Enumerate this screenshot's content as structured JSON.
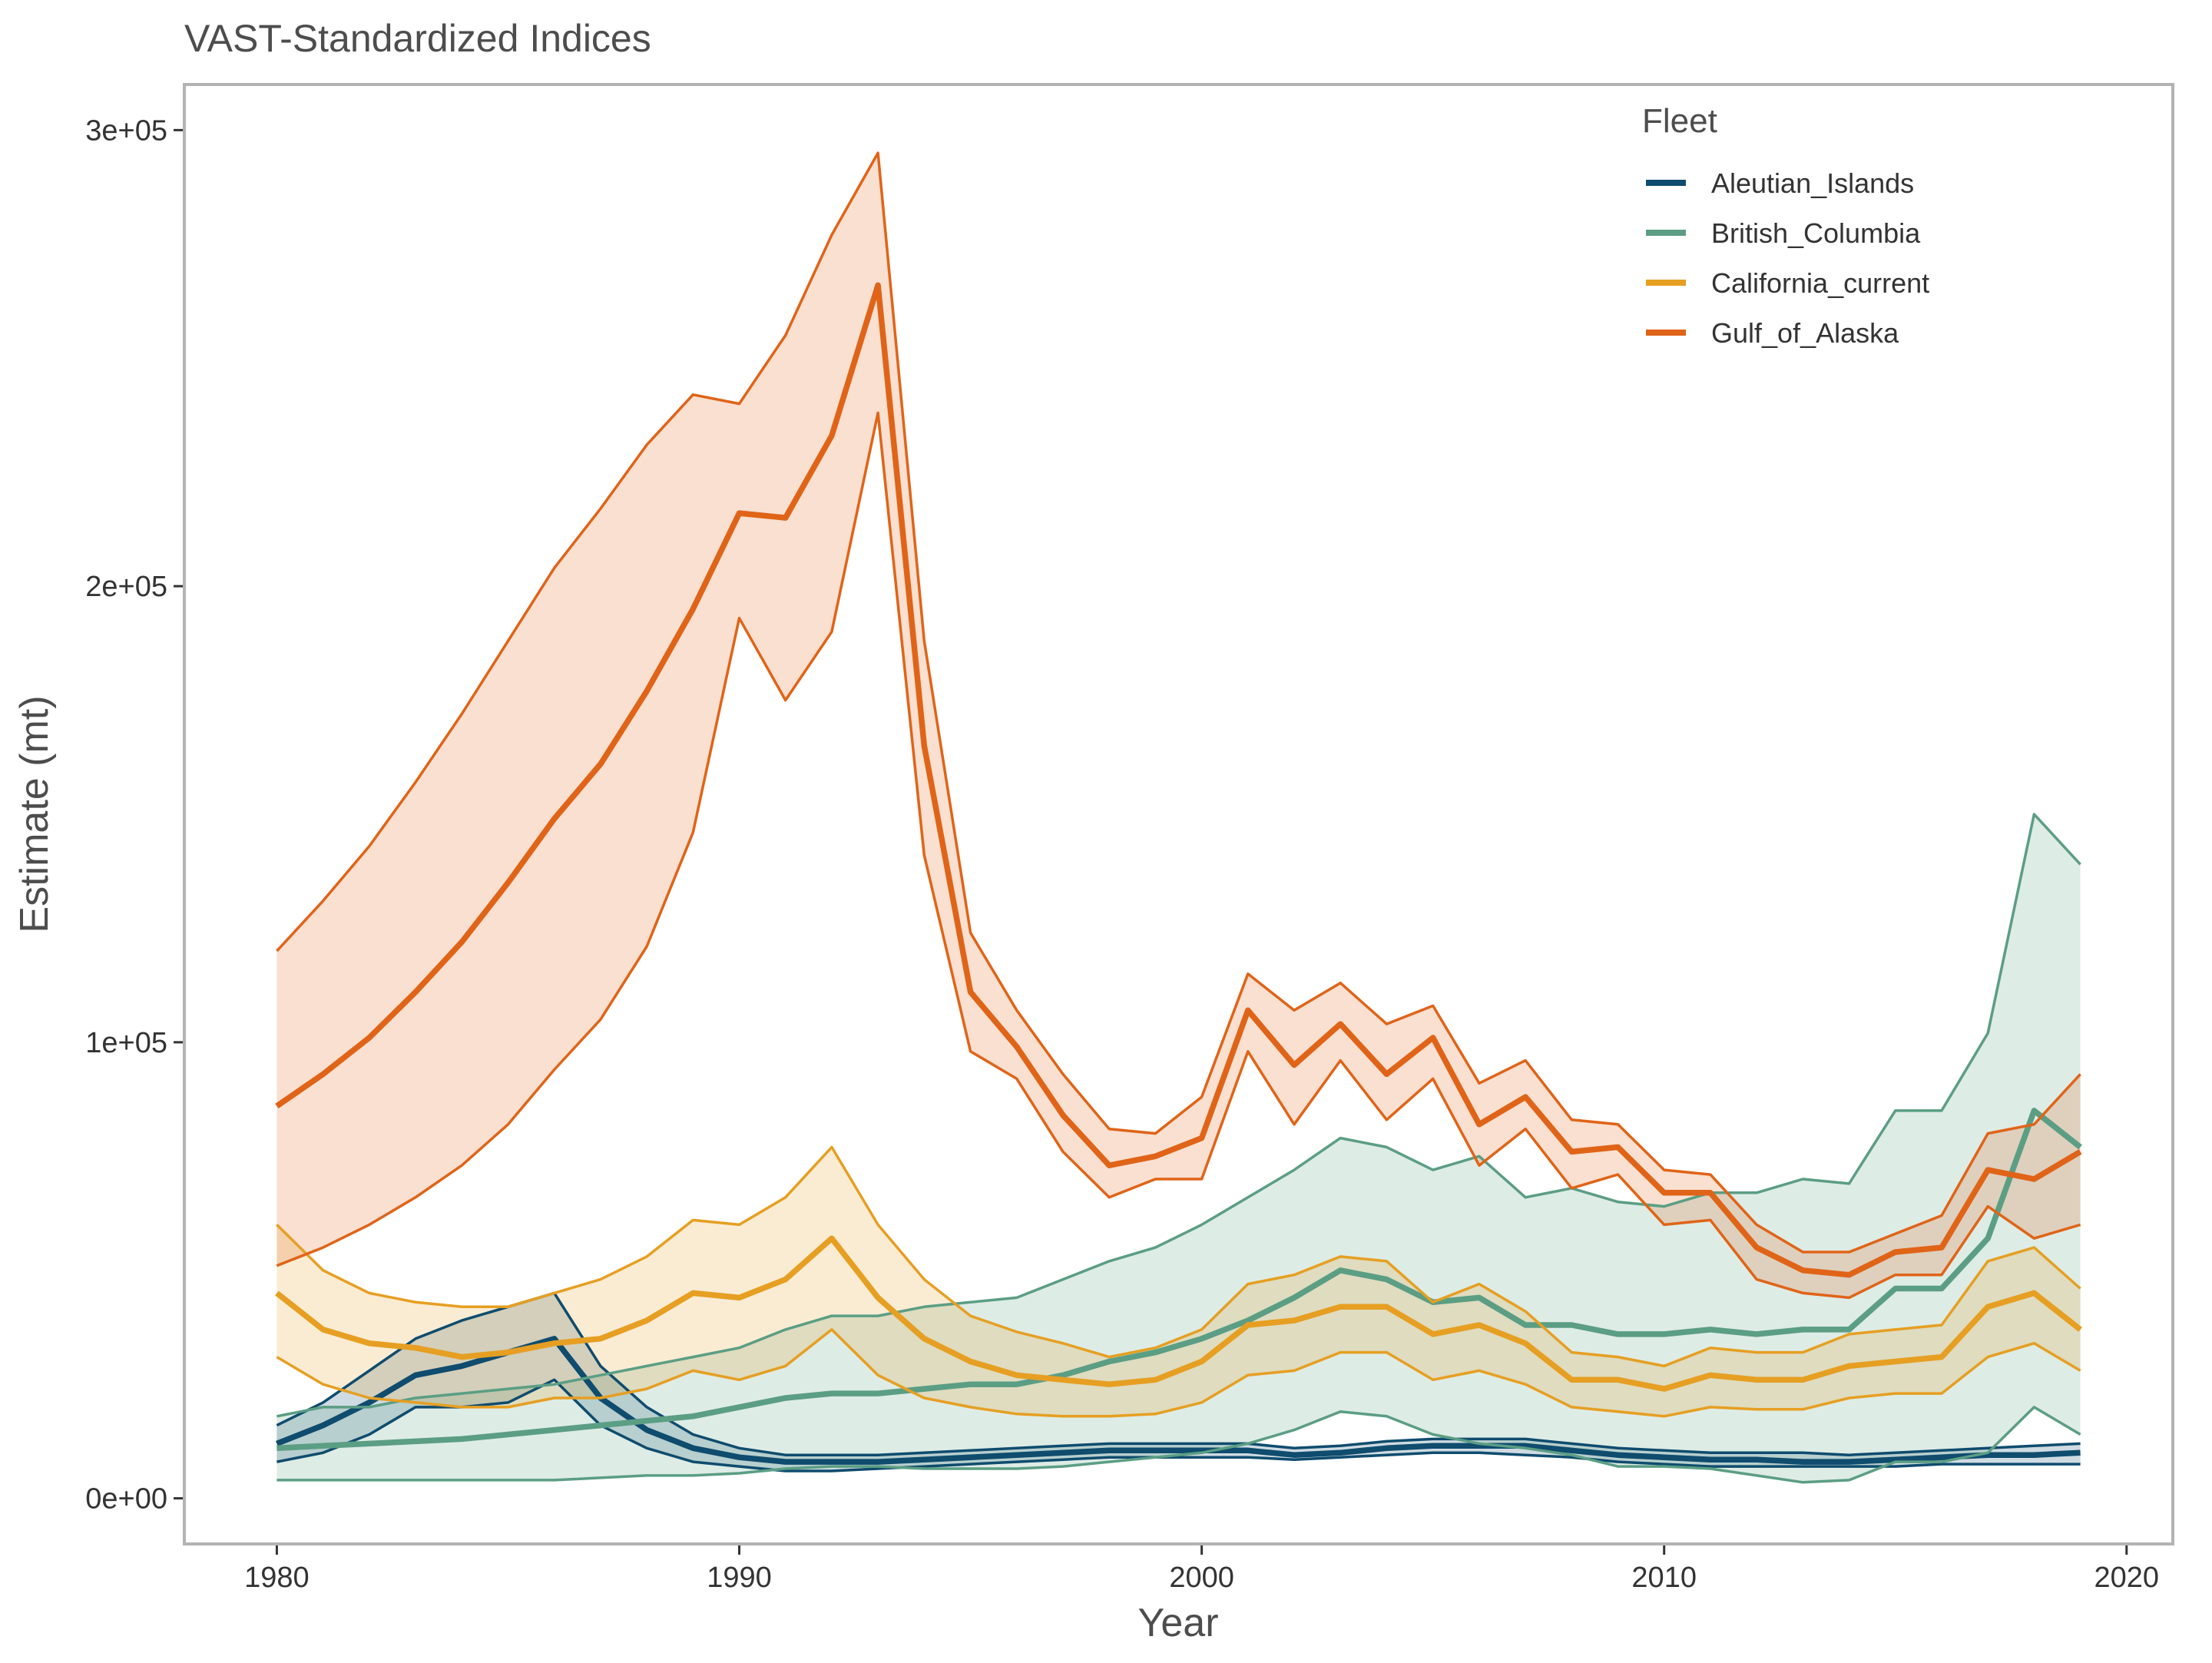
{
  "chart_data": {
    "type": "line",
    "title": "VAST-Standardized Indices",
    "xlabel": "Year",
    "ylabel": "Estimate (mt)",
    "xlim": [
      1978,
      2021
    ],
    "ylim": [
      -10000,
      310000
    ],
    "x_ticks": [
      1980,
      1990,
      2000,
      2010,
      2020
    ],
    "x_tick_labels": [
      "1980",
      "1990",
      "2000",
      "2010",
      "2020"
    ],
    "y_ticks": [
      0,
      100000,
      200000,
      300000
    ],
    "y_tick_labels": [
      "0e+00",
      "1e+05",
      "2e+05",
      "3e+05"
    ],
    "grid": false,
    "legend": {
      "title": "Fleet",
      "position": "top-right"
    },
    "x": [
      1980,
      1981,
      1982,
      1983,
      1984,
      1985,
      1986,
      1987,
      1988,
      1989,
      1990,
      1991,
      1992,
      1993,
      1994,
      1995,
      1996,
      1997,
      1998,
      1999,
      2000,
      2001,
      2002,
      2003,
      2004,
      2005,
      2006,
      2007,
      2008,
      2009,
      2010,
      2011,
      2012,
      2013,
      2014,
      2015,
      2016,
      2017,
      2018,
      2019
    ],
    "series": [
      {
        "name": "Aleutian_Islands",
        "color": "#0f4c6e",
        "values": [
          12000,
          16000,
          21000,
          27000,
          29000,
          32000,
          35000,
          22000,
          15000,
          11000,
          9000,
          8000,
          8000,
          8000,
          8500,
          9000,
          9500,
          10000,
          10500,
          10500,
          10500,
          10500,
          9500,
          10000,
          11000,
          11500,
          11500,
          11500,
          10500,
          9500,
          9000,
          8500,
          8500,
          8000,
          8000,
          8500,
          9000,
          9500,
          9500,
          10000
        ],
        "lower": [
          8000,
          10000,
          14000,
          20000,
          20000,
          21000,
          26000,
          16000,
          11000,
          8000,
          7000,
          6000,
          6000,
          6500,
          7000,
          7500,
          8000,
          8500,
          9000,
          9000,
          9000,
          9000,
          8500,
          9000,
          9500,
          10000,
          10000,
          9500,
          9000,
          8000,
          7500,
          7000,
          7000,
          7000,
          7000,
          7000,
          7500,
          7500,
          7500,
          7500
        ],
        "upper": [
          16000,
          21000,
          28000,
          35000,
          39000,
          42000,
          45000,
          29000,
          20000,
          14000,
          11000,
          9500,
          9500,
          9500,
          10000,
          10500,
          11000,
          11500,
          12000,
          12000,
          12000,
          12000,
          11000,
          11500,
          12500,
          13000,
          13000,
          13000,
          12000,
          11000,
          10500,
          10000,
          10000,
          10000,
          9500,
          10000,
          10500,
          11000,
          11500,
          12000
        ]
      },
      {
        "name": "British_Columbia",
        "color": "#5b9e84",
        "values": [
          11000,
          11500,
          12000,
          12500,
          13000,
          14000,
          15000,
          16000,
          17000,
          18000,
          20000,
          22000,
          23000,
          23000,
          24000,
          25000,
          25000,
          27000,
          30000,
          32000,
          35000,
          39000,
          44000,
          50000,
          48000,
          43000,
          44000,
          38000,
          38000,
          36000,
          36000,
          37000,
          36000,
          37000,
          37000,
          46000,
          46000,
          57000,
          85000,
          77000
        ],
        "lower": [
          4000,
          4000,
          4000,
          4000,
          4000,
          4000,
          4000,
          4500,
          5000,
          5000,
          5500,
          6500,
          7000,
          7000,
          6500,
          6500,
          6500,
          7000,
          8000,
          9000,
          10000,
          12000,
          15000,
          19000,
          18000,
          14000,
          12000,
          11000,
          9500,
          7000,
          7000,
          6500,
          5000,
          3500,
          4000,
          8000,
          8000,
          10000,
          20000,
          14000
        ],
        "upper": [
          18000,
          20000,
          20000,
          22000,
          23000,
          24000,
          25000,
          27000,
          29000,
          31000,
          33000,
          37000,
          40000,
          40000,
          42000,
          43000,
          44000,
          48000,
          52000,
          55000,
          60000,
          66000,
          72000,
          79000,
          77000,
          72000,
          75000,
          66000,
          68000,
          65000,
          64000,
          67000,
          67000,
          70000,
          69000,
          85000,
          85000,
          102000,
          150000,
          139000
        ]
      },
      {
        "name": "California_current",
        "color": "#e69f22",
        "values": [
          45000,
          37000,
          34000,
          33000,
          31000,
          32000,
          34000,
          35000,
          39000,
          45000,
          44000,
          48000,
          57000,
          44000,
          35000,
          30000,
          27000,
          26000,
          25000,
          26000,
          30000,
          38000,
          39000,
          42000,
          42000,
          36000,
          38000,
          34000,
          26000,
          26000,
          24000,
          27000,
          26000,
          26000,
          29000,
          30000,
          31000,
          42000,
          45000,
          37000
        ],
        "lower": [
          31000,
          25000,
          22000,
          21000,
          20000,
          20000,
          22000,
          22000,
          24000,
          28000,
          26000,
          29000,
          37000,
          27000,
          22000,
          20000,
          18500,
          18000,
          18000,
          18500,
          21000,
          27000,
          28000,
          32000,
          32000,
          26000,
          28000,
          25000,
          20000,
          19000,
          18000,
          20000,
          19500,
          19500,
          22000,
          23000,
          23000,
          31000,
          34000,
          28000
        ],
        "upper": [
          60000,
          50000,
          45000,
          43000,
          42000,
          42000,
          45000,
          48000,
          53000,
          61000,
          60000,
          66000,
          77000,
          60000,
          48000,
          40000,
          36500,
          34000,
          31000,
          33000,
          37000,
          47000,
          49000,
          53000,
          52000,
          43000,
          47000,
          41000,
          32000,
          31000,
          29000,
          33000,
          32000,
          32000,
          36000,
          37000,
          38000,
          52000,
          55000,
          46000
        ]
      },
      {
        "name": "Gulf_of_Alaska",
        "color": "#e06418",
        "values": [
          86000,
          93000,
          101000,
          111000,
          122000,
          135000,
          149000,
          161000,
          177000,
          195000,
          216000,
          215000,
          233000,
          266000,
          165000,
          111000,
          99000,
          84000,
          73000,
          75000,
          79000,
          107000,
          95000,
          104000,
          93000,
          101000,
          82000,
          88000,
          76000,
          77000,
          67000,
          67000,
          55000,
          50000,
          49000,
          54000,
          55000,
          72000,
          70000,
          76000
        ],
        "lower": [
          51000,
          55000,
          60000,
          66000,
          73000,
          82000,
          94000,
          105000,
          121000,
          146000,
          193000,
          175000,
          190000,
          238000,
          141000,
          98000,
          92000,
          76000,
          66000,
          70000,
          70000,
          98000,
          82000,
          96000,
          83000,
          92000,
          73000,
          81000,
          68000,
          71000,
          60000,
          61000,
          48000,
          45000,
          44000,
          49000,
          49000,
          64000,
          57000,
          60000
        ],
        "upper": [
          120000,
          131000,
          143000,
          157000,
          172000,
          188000,
          204000,
          217000,
          231000,
          242000,
          240000,
          255000,
          277000,
          295000,
          188000,
          124000,
          107000,
          93000,
          81000,
          80000,
          88000,
          115000,
          107000,
          113000,
          104000,
          108000,
          91000,
          96000,
          83000,
          82000,
          72000,
          71000,
          60000,
          54000,
          54000,
          58000,
          62000,
          80000,
          82000,
          93000
        ]
      }
    ]
  }
}
